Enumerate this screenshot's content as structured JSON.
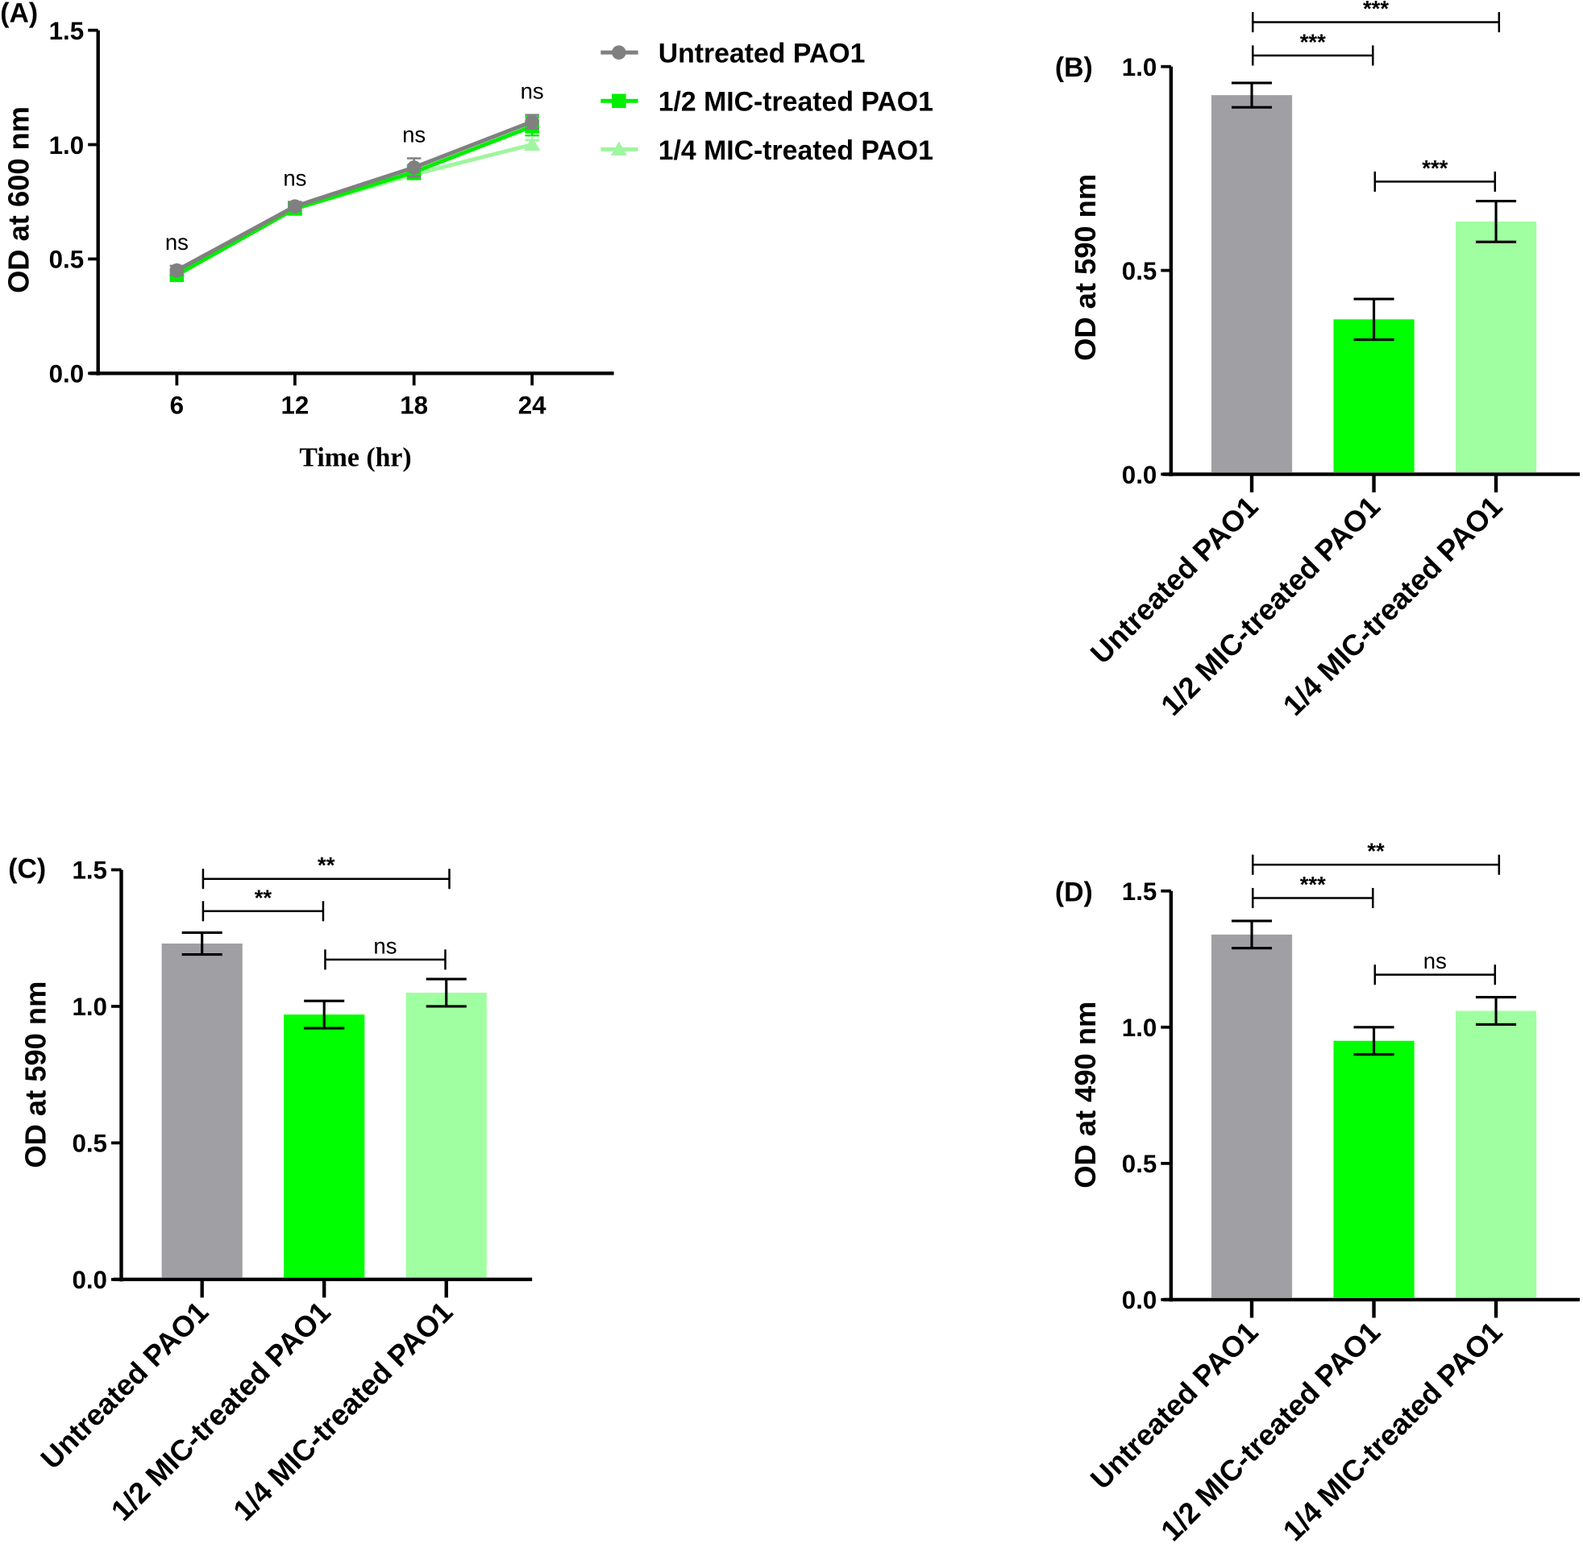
{
  "chart_data": [
    {
      "panel": "(A)",
      "type": "line",
      "xlabel": "Time (hr)",
      "ylabel": "OD at 600 nm",
      "x": [
        6,
        12,
        18,
        24
      ],
      "ylim": [
        0,
        1.5
      ],
      "yticks": [
        "0.0",
        "0.5",
        "1.0",
        "1.5"
      ],
      "xticks": [
        "6",
        "12",
        "18",
        "24"
      ],
      "legend_position": "top-right",
      "series": [
        {
          "name": "Untreated PAO1",
          "marker": "circle",
          "color": "#808080",
          "values": [
            0.45,
            0.73,
            0.9,
            1.1
          ],
          "errors": [
            0.02,
            0.02,
            0.04,
            0.03
          ]
        },
        {
          "name": "1/2 MIC-treated PAO1",
          "marker": "square",
          "color": "#00ee00",
          "values": [
            0.43,
            0.72,
            0.88,
            1.08
          ],
          "errors": [
            0.02,
            0.02,
            0.03,
            0.04
          ]
        },
        {
          "name": "1/4 MIC-treated PAO1",
          "marker": "triangle",
          "color": "#a0f5a0",
          "values": [
            0.45,
            0.72,
            0.87,
            1.0
          ],
          "errors": [
            0.02,
            0.02,
            0.02,
            0.02
          ]
        }
      ],
      "annotations": [
        "ns",
        "ns",
        "ns",
        "ns"
      ]
    },
    {
      "panel": "(B)",
      "type": "bar",
      "ylabel": "OD at 590 nm",
      "categories": [
        "Untreated PAO1",
        "1/2 MIC-treated PAO1",
        "1/4 MIC-treated PAO1"
      ],
      "values": [
        0.93,
        0.38,
        0.62
      ],
      "errors": [
        0.03,
        0.05,
        0.05
      ],
      "colors": [
        "#a0a0a4",
        "#00ff00",
        "#a0ffa0"
      ],
      "ylim": [
        0,
        1.0
      ],
      "yticks": [
        "0.0",
        "0.5",
        "1.0"
      ],
      "significance": [
        {
          "from": 0,
          "to": 1,
          "label": "***"
        },
        {
          "from": 0,
          "to": 2,
          "label": "***"
        },
        {
          "from": 1,
          "to": 2,
          "label": "***"
        }
      ]
    },
    {
      "panel": "(C)",
      "type": "bar",
      "ylabel": "OD at 590 nm",
      "categories": [
        "Untreated PAO1",
        "1/2 MIC-treated PAO1",
        "1/4 MIC-treated PAO1"
      ],
      "values": [
        1.23,
        0.97,
        1.05
      ],
      "errors": [
        0.04,
        0.05,
        0.05
      ],
      "colors": [
        "#a0a0a4",
        "#00ff00",
        "#a0ffa0"
      ],
      "ylim": [
        0,
        1.5
      ],
      "yticks": [
        "0.0",
        "0.5",
        "1.0",
        "1.5"
      ],
      "significance": [
        {
          "from": 0,
          "to": 1,
          "label": "**"
        },
        {
          "from": 0,
          "to": 2,
          "label": "**"
        },
        {
          "from": 1,
          "to": 2,
          "label": "ns"
        }
      ]
    },
    {
      "panel": "(D)",
      "type": "bar",
      "ylabel": "OD at 490 nm",
      "categories": [
        "Untreated PAO1",
        "1/2 MIC-treated PAO1",
        "1/4 MIC-treated PAO1"
      ],
      "values": [
        1.34,
        0.95,
        1.06
      ],
      "errors": [
        0.05,
        0.05,
        0.05
      ],
      "colors": [
        "#a0a0a4",
        "#00ff00",
        "#a0ffa0"
      ],
      "ylim": [
        0,
        1.5
      ],
      "yticks": [
        "0.0",
        "0.5",
        "1.0",
        "1.5"
      ],
      "significance": [
        {
          "from": 0,
          "to": 1,
          "label": "***"
        },
        {
          "from": 0,
          "to": 2,
          "label": "**"
        },
        {
          "from": 1,
          "to": 2,
          "label": "ns"
        }
      ]
    }
  ]
}
